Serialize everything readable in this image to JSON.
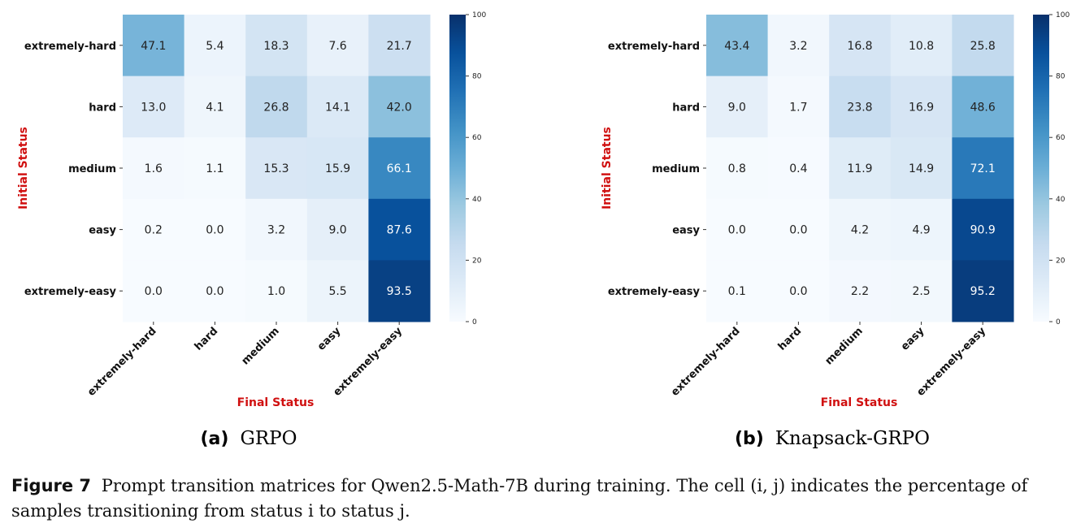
{
  "chart_data": [
    {
      "type": "heatmap",
      "panel_label": "(a)",
      "panel_name": "GRPO",
      "ylabel": "Initial Status",
      "xlabel": "Final Status",
      "rows": [
        "extremely-hard",
        "hard",
        "medium",
        "easy",
        "extremely-easy"
      ],
      "columns": [
        "extremely-hard",
        "hard",
        "medium",
        "easy",
        "extremely-easy"
      ],
      "values": [
        [
          47.1,
          5.4,
          18.3,
          7.6,
          21.7
        ],
        [
          13.0,
          4.1,
          26.8,
          14.1,
          42.0
        ],
        [
          1.6,
          1.1,
          15.3,
          15.9,
          66.1
        ],
        [
          0.2,
          0.0,
          3.2,
          9.0,
          87.6
        ],
        [
          0.0,
          0.0,
          1.0,
          5.5,
          93.5
        ]
      ],
      "colorbar": {
        "min": 0,
        "max": 100,
        "ticks": [
          "0",
          "20",
          "40",
          "60",
          "80",
          "100"
        ],
        "colormap": "Blues"
      }
    },
    {
      "type": "heatmap",
      "panel_label": "(b)",
      "panel_name": "Knapsack-GRPO",
      "ylabel": "Initial Status",
      "xlabel": "Final Status",
      "rows": [
        "extremely-hard",
        "hard",
        "medium",
        "easy",
        "extremely-easy"
      ],
      "columns": [
        "extremely-hard",
        "hard",
        "medium",
        "easy",
        "extremely-easy"
      ],
      "values": [
        [
          43.4,
          3.2,
          16.8,
          10.8,
          25.8
        ],
        [
          9.0,
          1.7,
          23.8,
          16.9,
          48.6
        ],
        [
          0.8,
          0.4,
          11.9,
          14.9,
          72.1
        ],
        [
          0.0,
          0.0,
          4.2,
          4.9,
          90.9
        ],
        [
          0.1,
          0.0,
          2.2,
          2.5,
          95.2
        ]
      ],
      "colorbar": {
        "min": 0,
        "max": 100,
        "ticks": [
          "0",
          "20",
          "40",
          "60",
          "80",
          "100"
        ],
        "colormap": "Blues"
      }
    }
  ],
  "caption": {
    "label": "Figure 7",
    "text": "Prompt transition matrices for Qwen2.5-Math-7B during training. The cell (i, j) indicates the percentage of samples transitioning from status i to status j."
  },
  "colors": {
    "axis_title": "#d01010",
    "low": "#f7fbff",
    "high": "#08306b"
  }
}
